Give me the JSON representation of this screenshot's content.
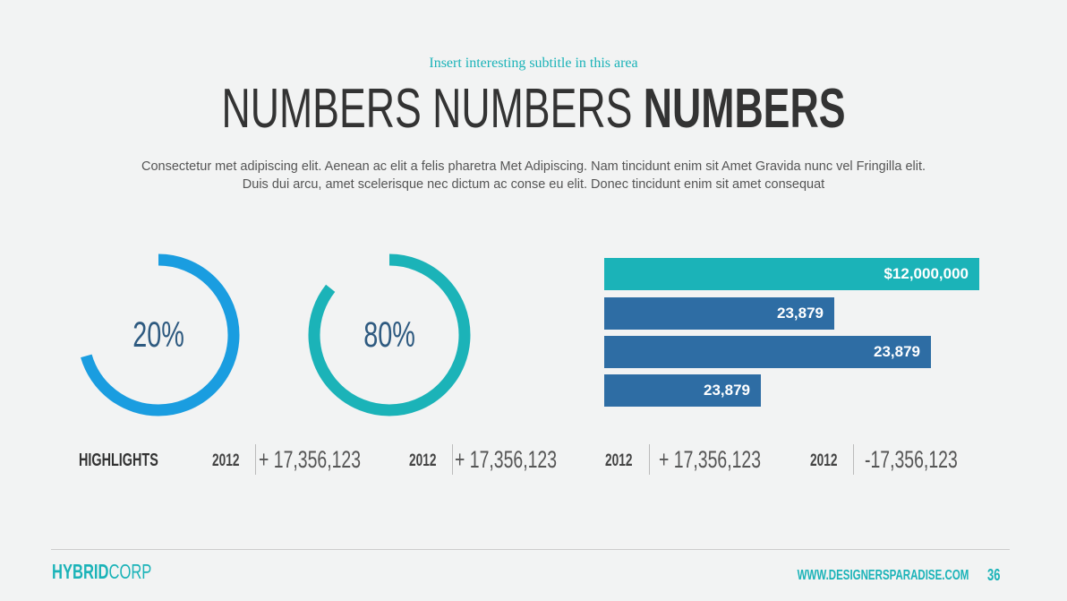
{
  "header": {
    "subtitle": "Insert interesting subtitle in this area",
    "title_light": "NUMBERS NUMBERS",
    "title_bold": "NUMBERS",
    "body": [
      "Consectetur  met adipiscing elit. Aenean ac elit a felis pharetra Met Adipiscing. Nam tincidunt enim sit Amet Gravida nunc vel Fringilla elit.",
      "Duis dui arcu, amet scelerisque nec dictum ac conse eu elit. Donec tincidunt enim sit amet consequat"
    ]
  },
  "donuts": [
    {
      "label": "20%"
    },
    {
      "label": "80%"
    }
  ],
  "bars": [
    {
      "label": "$12,000,000"
    },
    {
      "label": "23,879"
    },
    {
      "label": "23,879"
    },
    {
      "label": "23,879"
    }
  ],
  "stats": {
    "heading": "HIGHLIGHTS",
    "items": [
      {
        "year": "2012",
        "value": "+ 17,356,123"
      },
      {
        "year": "2012",
        "value": "+ 17,356,123"
      },
      {
        "year": "2012",
        "value": "+ 17,356,123"
      },
      {
        "year": "2012",
        "value": "-17,356,123"
      }
    ]
  },
  "footer": {
    "brand_bold": "HYBRID",
    "brand_light": "CORP",
    "url": "WWW.DESIGNERSPARADISE.COM",
    "page": "36"
  }
}
